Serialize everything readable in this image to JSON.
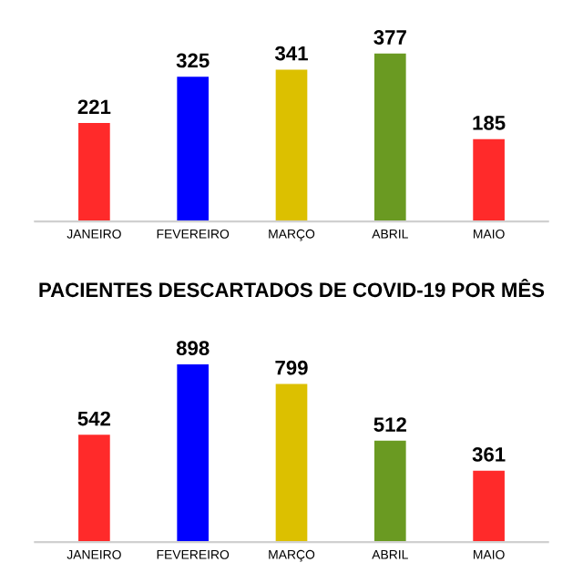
{
  "chart_data": [
    {
      "type": "bar",
      "categories": [
        "JANEIRO",
        "FEVEREIRO",
        "MARÇO",
        "ABRIL",
        "MAIO"
      ],
      "values": [
        221,
        325,
        341,
        377,
        185
      ],
      "colors": [
        "#ff2a2a",
        "#0000ff",
        "#dcc000",
        "#6a9a22",
        "#ff2a2a"
      ],
      "data_labels": true,
      "grid": false,
      "legend": false
    },
    {
      "type": "bar",
      "title": "PACIENTES DESCARTADOS DE COVID-19 POR MÊS",
      "categories": [
        "JANEIRO",
        "FEVEREIRO",
        "MARÇO",
        "ABRIL",
        "MAIO"
      ],
      "values": [
        542,
        898,
        799,
        512,
        361
      ],
      "colors": [
        "#ff2a2a",
        "#0000ff",
        "#dcc000",
        "#6a9a22",
        "#ff2a2a"
      ],
      "data_labels": true,
      "grid": false,
      "legend": false
    }
  ]
}
